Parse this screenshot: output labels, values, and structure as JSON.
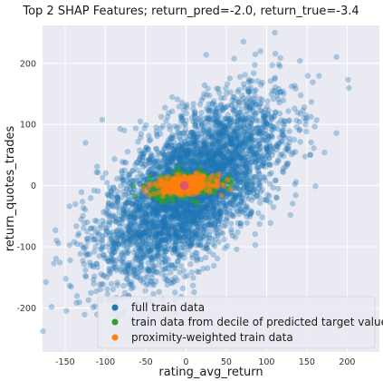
{
  "chart_data": {
    "type": "scatter",
    "title": "Top 2 SHAP Features; return_pred=-2.0, return_true=-3.4",
    "xlabel": "rating_avg_return",
    "ylabel": "return_quotes_trades",
    "xlim": [
      -178,
      240
    ],
    "ylim": [
      -272,
      262
    ],
    "xticks": [
      -150,
      -100,
      -50,
      0,
      50,
      100,
      150,
      200
    ],
    "yticks": [
      -200,
      -100,
      0,
      100,
      200
    ],
    "grid": true,
    "legend_position": "bottom-right",
    "background": "#eaeaf2",
    "series": [
      {
        "name": "full train data",
        "color": "#1f77b4",
        "distribution": {
          "mean_x": 5,
          "mean_y": -5,
          "sd_x": 55,
          "sd_y": 72,
          "correlation": 0.62,
          "count": 4200,
          "clip_y": 250
        }
      },
      {
        "name": "train data from decile of predicted target value",
        "color": "#2ca02c",
        "distribution": {
          "mean_x": 0,
          "mean_y": 0,
          "sd_x": 22,
          "sd_y": 10,
          "correlation": 0.3,
          "count": 420
        }
      },
      {
        "name": "proximity-weighted train data",
        "color": "#ff7f0e",
        "distribution": {
          "mean_x": -2,
          "mean_y": 1,
          "sd_x": 18,
          "sd_y": 7,
          "correlation": 0.2,
          "count": 380
        }
      }
    ],
    "highlight_point": {
      "x": -2,
      "y": 0,
      "color": "#e0556a"
    }
  }
}
